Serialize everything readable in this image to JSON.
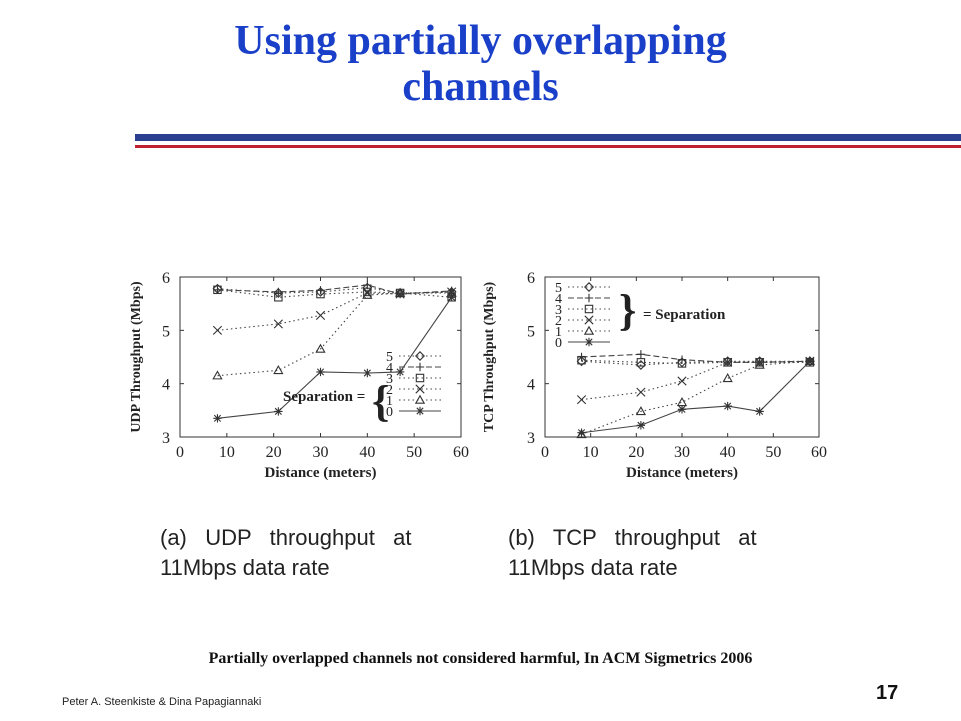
{
  "slide": {
    "title_line1": "Using partially overlapping",
    "title_line2": "channels",
    "citation": "Partially overlapped channels not considered harmful, In ACM Sigmetrics 2006",
    "footer": "Peter A. Steenkiste & Dina Papagiannaki",
    "page_number": "17"
  },
  "chart_data": [
    {
      "type": "line",
      "caption_line1": "(a)   UDP   throughput   at",
      "caption_line2": "11Mbps data rate",
      "xlabel": "Distance (meters)",
      "ylabel": "UDP Throughput (Mbps)",
      "xlim": [
        0,
        60
      ],
      "ylim": [
        3,
        6
      ],
      "xticks": [
        0,
        10,
        20,
        30,
        40,
        50,
        60
      ],
      "yticks": [
        3,
        4,
        5,
        6
      ],
      "legend_title": "Separation =",
      "legend_position": "center-right",
      "series": [
        {
          "name": "5",
          "marker": "diamond",
          "x": [
            8,
            21,
            30,
            40,
            47,
            58
          ],
          "y": [
            5.78,
            5.7,
            5.72,
            5.8,
            5.7,
            5.72
          ]
        },
        {
          "name": "4",
          "marker": "plus",
          "x": [
            8,
            21,
            30,
            40,
            47,
            58
          ],
          "y": [
            5.76,
            5.72,
            5.75,
            5.85,
            5.68,
            5.74
          ]
        },
        {
          "name": "3",
          "marker": "square",
          "x": [
            8,
            21,
            30,
            40,
            47,
            58
          ],
          "y": [
            5.76,
            5.62,
            5.68,
            5.72,
            5.7,
            5.62
          ]
        },
        {
          "name": "2",
          "marker": "cross",
          "x": [
            8,
            21,
            30,
            40,
            47,
            58
          ],
          "y": [
            5.0,
            5.12,
            5.28,
            5.7,
            5.68,
            5.72
          ]
        },
        {
          "name": "1",
          "marker": "triangle",
          "x": [
            8,
            21,
            30,
            40,
            47,
            58
          ],
          "y": [
            4.15,
            4.25,
            4.65,
            5.66,
            5.7,
            5.7
          ]
        },
        {
          "name": "0",
          "marker": "star",
          "x": [
            8,
            21,
            30,
            40,
            47,
            58
          ],
          "y": [
            3.35,
            3.48,
            4.22,
            4.2,
            4.22,
            5.62
          ]
        }
      ]
    },
    {
      "type": "line",
      "caption_line1": "(b)   TCP   throughput   at",
      "caption_line2": "11Mbps data rate",
      "xlabel": "Distance (meters)",
      "ylabel": "TCP Throughput (Mbps)",
      "xlim": [
        0,
        60
      ],
      "ylim": [
        3,
        6
      ],
      "xticks": [
        0,
        10,
        20,
        30,
        40,
        50,
        60
      ],
      "yticks": [
        3,
        4,
        5,
        6
      ],
      "legend_title": "= Separation",
      "legend_position": "top-left",
      "series": [
        {
          "name": "5",
          "marker": "diamond",
          "x": [
            8,
            21,
            30,
            40,
            47,
            58
          ],
          "y": [
            4.42,
            4.35,
            4.4,
            4.42,
            4.42,
            4.42
          ]
        },
        {
          "name": "4",
          "marker": "plus",
          "x": [
            8,
            21,
            30,
            40,
            47,
            58
          ],
          "y": [
            4.5,
            4.55,
            4.45,
            4.4,
            4.4,
            4.42
          ]
        },
        {
          "name": "3",
          "marker": "square",
          "x": [
            8,
            21,
            30,
            40,
            47,
            58
          ],
          "y": [
            4.44,
            4.4,
            4.38,
            4.4,
            4.4,
            4.4
          ]
        },
        {
          "name": "2",
          "marker": "cross",
          "x": [
            8,
            21,
            30,
            40,
            47,
            58
          ],
          "y": [
            3.7,
            3.84,
            4.05,
            4.4,
            4.4,
            4.42
          ]
        },
        {
          "name": "1",
          "marker": "triangle",
          "x": [
            8,
            21,
            30,
            40,
            47,
            58
          ],
          "y": [
            3.05,
            3.48,
            3.65,
            4.1,
            4.35,
            4.42
          ]
        },
        {
          "name": "0",
          "marker": "star",
          "x": [
            8,
            21,
            30,
            40,
            47,
            58
          ],
          "y": [
            3.08,
            3.22,
            3.52,
            3.58,
            3.48,
            4.42
          ]
        }
      ]
    }
  ]
}
